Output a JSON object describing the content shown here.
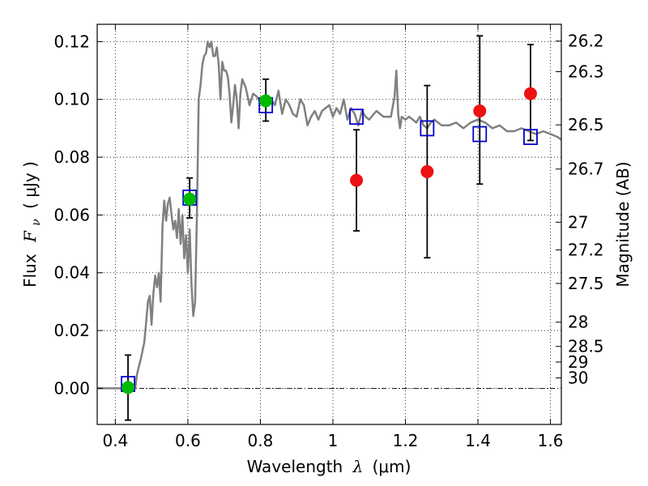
{
  "chart_data": {
    "type": "scatter",
    "xlabel": {
      "prefix": "Wavelength",
      "symbol": "λ",
      "units": "(μm)"
    },
    "ylabel": {
      "prefix": "Flux",
      "symbol": "F",
      "subscript": "ν",
      "units": "( μJy )"
    },
    "ylabel_right": "Magnitude (AB)",
    "xlim": [
      0.35,
      1.63
    ],
    "ylim": [
      -0.0125,
      0.126
    ],
    "grid": true,
    "x_ticks": [
      {
        "value": 0.4,
        "label": "0.4"
      },
      {
        "value": 0.6,
        "label": "0.6"
      },
      {
        "value": 0.8,
        "label": "0.8"
      },
      {
        "value": 1.0,
        "label": "1"
      },
      {
        "value": 1.2,
        "label": "1.2"
      },
      {
        "value": 1.4,
        "label": "1.4"
      },
      {
        "value": 1.6,
        "label": "1.6"
      }
    ],
    "y_ticks": [
      {
        "value": 0.0,
        "label": "0.00"
      },
      {
        "value": 0.02,
        "label": "0.02"
      },
      {
        "value": 0.04,
        "label": "0.04"
      },
      {
        "value": 0.06,
        "label": "0.06"
      },
      {
        "value": 0.08,
        "label": "0.08"
      },
      {
        "value": 0.1,
        "label": "0.10"
      },
      {
        "value": 0.12,
        "label": "0.12"
      }
    ],
    "right_ticks": [
      {
        "mag": "26.2",
        "flux": 0.1202
      },
      {
        "mag": "26.3",
        "flux": 0.1096
      },
      {
        "mag": "26.5",
        "flux": 0.0912
      },
      {
        "mag": "26.7",
        "flux": 0.0759
      },
      {
        "mag": "27",
        "flux": 0.0575
      },
      {
        "mag": "27.2",
        "flux": 0.0479
      },
      {
        "mag": "27.5",
        "flux": 0.0363
      },
      {
        "mag": "28",
        "flux": 0.0229
      },
      {
        "mag": "28.5",
        "flux": 0.0145
      },
      {
        "mag": "29",
        "flux": 0.0091
      },
      {
        "mag": "30",
        "flux": 0.0036
      }
    ],
    "series": [
      {
        "kind": "line",
        "color": "#808080",
        "x": [
          0.35,
          0.44,
          0.455,
          0.46,
          0.47,
          0.48,
          0.49,
          0.495,
          0.5,
          0.505,
          0.51,
          0.515,
          0.52,
          0.525,
          0.53,
          0.535,
          0.54,
          0.545,
          0.55,
          0.555,
          0.56,
          0.565,
          0.57,
          0.575,
          0.58,
          0.585,
          0.59,
          0.595,
          0.6,
          0.605,
          0.61,
          0.615,
          0.62,
          0.625,
          0.63,
          0.635,
          0.64,
          0.645,
          0.65,
          0.655,
          0.66,
          0.665,
          0.67,
          0.675,
          0.68,
          0.685,
          0.69,
          0.695,
          0.7,
          0.705,
          0.71,
          0.715,
          0.72,
          0.725,
          0.73,
          0.735,
          0.74,
          0.745,
          0.75,
          0.76,
          0.77,
          0.78,
          0.79,
          0.8,
          0.81,
          0.82,
          0.83,
          0.84,
          0.85,
          0.86,
          0.87,
          0.88,
          0.89,
          0.9,
          0.91,
          0.92,
          0.93,
          0.94,
          0.95,
          0.96,
          0.97,
          0.98,
          0.99,
          1.0,
          1.01,
          1.02,
          1.03,
          1.04,
          1.05,
          1.06,
          1.07,
          1.08,
          1.09,
          1.1,
          1.12,
          1.14,
          1.15,
          1.16,
          1.17,
          1.175,
          1.18,
          1.185,
          1.19,
          1.2,
          1.21,
          1.22,
          1.23,
          1.24,
          1.25,
          1.26,
          1.27,
          1.28,
          1.29,
          1.3,
          1.32,
          1.34,
          1.36,
          1.38,
          1.4,
          1.42,
          1.44,
          1.46,
          1.48,
          1.5,
          1.52,
          1.54,
          1.56,
          1.58,
          1.6,
          1.62,
          1.63
        ],
        "y": [
          0.0,
          0.0,
          0.0,
          0.005,
          0.01,
          0.016,
          0.03,
          0.032,
          0.022,
          0.033,
          0.039,
          0.035,
          0.04,
          0.03,
          0.056,
          0.065,
          0.058,
          0.064,
          0.066,
          0.06,
          0.055,
          0.058,
          0.052,
          0.062,
          0.05,
          0.06,
          0.045,
          0.053,
          0.04,
          0.055,
          0.036,
          0.025,
          0.03,
          0.06,
          0.1,
          0.105,
          0.112,
          0.115,
          0.116,
          0.12,
          0.118,
          0.12,
          0.115,
          0.115,
          0.118,
          0.112,
          0.1,
          0.113,
          0.11,
          0.11,
          0.108,
          0.102,
          0.092,
          0.098,
          0.105,
          0.1,
          0.09,
          0.102,
          0.107,
          0.104,
          0.098,
          0.102,
          0.101,
          0.099,
          0.098,
          0.1,
          0.1,
          0.098,
          0.103,
          0.095,
          0.1,
          0.098,
          0.095,
          0.094,
          0.1,
          0.098,
          0.091,
          0.094,
          0.096,
          0.093,
          0.096,
          0.097,
          0.098,
          0.094,
          0.097,
          0.095,
          0.1,
          0.093,
          0.097,
          0.095,
          0.091,
          0.096,
          0.094,
          0.093,
          0.096,
          0.094,
          0.094,
          0.094,
          0.101,
          0.11,
          0.095,
          0.09,
          0.094,
          0.093,
          0.094,
          0.093,
          0.092,
          0.094,
          0.091,
          0.09,
          0.092,
          0.093,
          0.092,
          0.091,
          0.091,
          0.092,
          0.09,
          0.092,
          0.093,
          0.092,
          0.09,
          0.091,
          0.089,
          0.089,
          0.09,
          0.089,
          0.088,
          0.089,
          0.088,
          0.087,
          0.086
        ]
      },
      {
        "kind": "squares",
        "color": "#0000cc",
        "x": [
          0.435,
          0.605,
          0.815,
          1.065,
          1.26,
          1.405,
          1.545
        ],
        "y": [
          0.0015,
          0.066,
          0.098,
          0.094,
          0.09,
          0.088,
          0.087
        ]
      },
      {
        "kind": "circles",
        "color": "#00bb00",
        "x": [
          0.435,
          0.605,
          0.815
        ],
        "y": [
          0.0003,
          0.0655,
          0.0995
        ]
      },
      {
        "kind": "circles",
        "color": "#ee1111",
        "x": [
          1.065,
          1.26,
          1.405,
          1.545
        ],
        "y": [
          0.072,
          0.075,
          0.096,
          0.102
        ]
      }
    ],
    "errorbars": [
      {
        "x": 0.435,
        "low": -0.011,
        "high": 0.0115
      },
      {
        "x": 0.605,
        "low": 0.059,
        "high": 0.0728
      },
      {
        "x": 0.815,
        "low": 0.0925,
        "high": 0.107
      },
      {
        "x": 1.065,
        "low": 0.0545,
        "high": 0.0895
      },
      {
        "x": 1.26,
        "low": 0.0452,
        "high": 0.1048
      },
      {
        "x": 1.405,
        "low": 0.0707,
        "high": 0.122
      },
      {
        "x": 1.545,
        "low": 0.0858,
        "high": 0.119
      }
    ]
  }
}
